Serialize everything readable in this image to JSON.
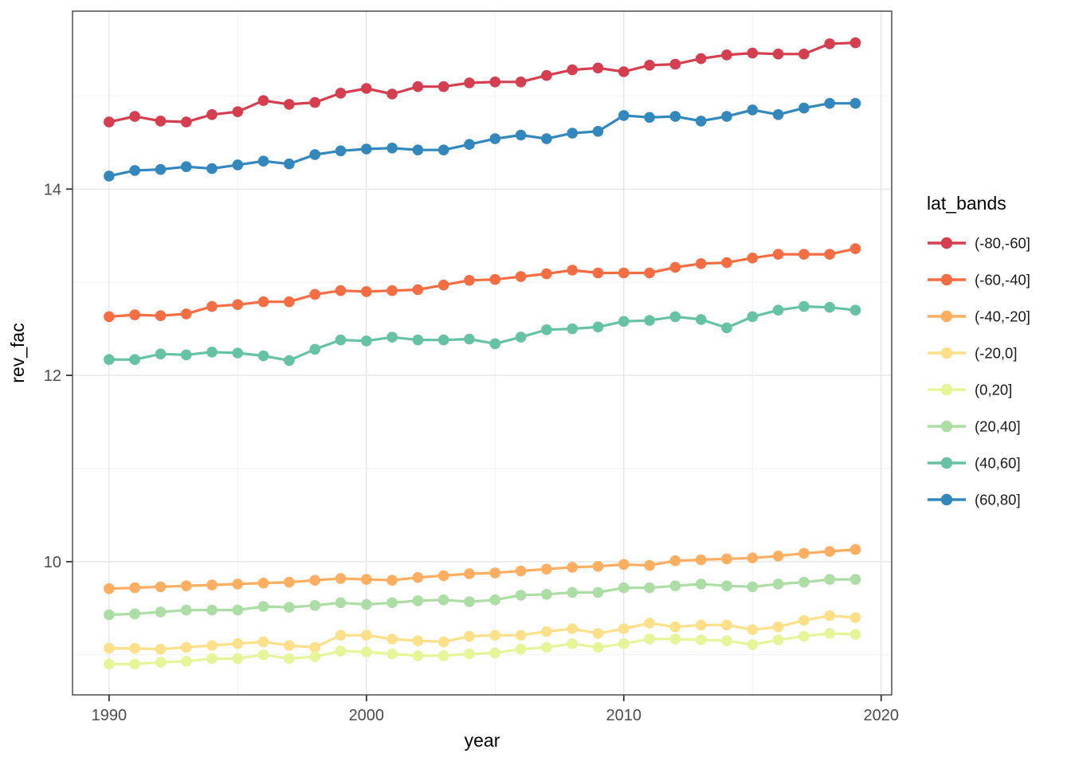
{
  "style": {
    "background": "#ffffff",
    "panel_fill": "#ffffff",
    "panel_border": "#333333",
    "grid_major": "#e6e6e6",
    "grid_minor": "#f2f2f2",
    "tick_color": "#333333",
    "tick_label_color": "#4d4d4d",
    "axis_title_color": "#000000",
    "legend_text_color": "#1a1a1a"
  },
  "chart_data": {
    "type": "line",
    "title": "",
    "xlabel": "year",
    "ylabel": "rev_fac",
    "legend_title": "lat_bands",
    "legend_position": "right",
    "grid": true,
    "xlim": [
      1988.58,
      2020.41
    ],
    "ylim": [
      8.57,
      15.91
    ],
    "x_major_ticks": [
      1990,
      2000,
      2010,
      2020
    ],
    "x_minor_ticks": [
      1995,
      2005,
      2015
    ],
    "y_major_ticks": [
      10,
      12,
      14
    ],
    "y_minor_ticks": [
      9,
      11,
      13,
      15
    ],
    "x": [
      1990,
      1991,
      1992,
      1993,
      1994,
      1995,
      1996,
      1997,
      1998,
      1999,
      2000,
      2001,
      2002,
      2003,
      2004,
      2005,
      2006,
      2007,
      2008,
      2009,
      2010,
      2011,
      2012,
      2013,
      2014,
      2015,
      2016,
      2017,
      2018,
      2019
    ],
    "series": [
      {
        "name": "(-80,-60]",
        "color": "#d53e4f",
        "values": [
          14.72,
          14.78,
          14.73,
          14.72,
          14.8,
          14.83,
          14.95,
          14.91,
          14.93,
          15.03,
          15.08,
          15.02,
          15.1,
          15.1,
          15.14,
          15.15,
          15.15,
          15.22,
          15.28,
          15.3,
          15.26,
          15.33,
          15.34,
          15.4,
          15.44,
          15.46,
          15.45,
          15.45,
          15.56,
          15.57
        ]
      },
      {
        "name": "(-60,-40]",
        "color": "#f46d43",
        "values": [
          12.63,
          12.65,
          12.64,
          12.66,
          12.74,
          12.76,
          12.79,
          12.79,
          12.87,
          12.91,
          12.9,
          12.91,
          12.92,
          12.97,
          13.02,
          13.03,
          13.06,
          13.09,
          13.13,
          13.1,
          13.1,
          13.1,
          13.16,
          13.2,
          13.21,
          13.26,
          13.3,
          13.3,
          13.3,
          13.36
        ]
      },
      {
        "name": "(-40,-20]",
        "color": "#fdae61",
        "values": [
          9.71,
          9.72,
          9.73,
          9.74,
          9.75,
          9.76,
          9.77,
          9.78,
          9.8,
          9.82,
          9.81,
          9.8,
          9.83,
          9.85,
          9.87,
          9.88,
          9.9,
          9.92,
          9.94,
          9.95,
          9.97,
          9.96,
          10.01,
          10.02,
          10.03,
          10.04,
          10.06,
          10.09,
          10.11,
          10.13
        ]
      },
      {
        "name": "(-20,0]",
        "color": "#fee08b",
        "values": [
          9.07,
          9.07,
          9.06,
          9.08,
          9.1,
          9.12,
          9.14,
          9.1,
          9.08,
          9.21,
          9.21,
          9.17,
          9.15,
          9.14,
          9.2,
          9.21,
          9.21,
          9.25,
          9.28,
          9.23,
          9.28,
          9.34,
          9.3,
          9.32,
          9.32,
          9.27,
          9.3,
          9.37,
          9.42,
          9.4
        ]
      },
      {
        "name": "(0,20]",
        "color": "#e6f598",
        "values": [
          8.9,
          8.9,
          8.92,
          8.93,
          8.96,
          8.96,
          9.0,
          8.96,
          8.98,
          9.04,
          9.03,
          9.01,
          8.99,
          8.99,
          9.01,
          9.02,
          9.06,
          9.08,
          9.12,
          9.08,
          9.12,
          9.17,
          9.17,
          9.16,
          9.15,
          9.11,
          9.16,
          9.2,
          9.23,
          9.22
        ]
      },
      {
        "name": "(20,40]",
        "color": "#abdda4",
        "values": [
          9.43,
          9.44,
          9.46,
          9.48,
          9.48,
          9.48,
          9.52,
          9.51,
          9.53,
          9.56,
          9.54,
          9.56,
          9.58,
          9.59,
          9.57,
          9.59,
          9.64,
          9.65,
          9.67,
          9.67,
          9.72,
          9.72,
          9.74,
          9.76,
          9.74,
          9.73,
          9.76,
          9.78,
          9.81,
          9.81
        ]
      },
      {
        "name": "(40,60]",
        "color": "#66c2a5",
        "values": [
          12.17,
          12.17,
          12.23,
          12.22,
          12.25,
          12.24,
          12.21,
          12.16,
          12.28,
          12.38,
          12.37,
          12.41,
          12.38,
          12.38,
          12.39,
          12.34,
          12.41,
          12.49,
          12.5,
          12.52,
          12.58,
          12.59,
          12.63,
          12.6,
          12.51,
          12.63,
          12.7,
          12.74,
          12.73,
          12.7
        ]
      },
      {
        "name": "(60,80]",
        "color": "#3288bd",
        "values": [
          14.14,
          14.2,
          14.21,
          14.24,
          14.22,
          14.26,
          14.3,
          14.27,
          14.37,
          14.41,
          14.43,
          14.44,
          14.42,
          14.42,
          14.48,
          14.54,
          14.58,
          14.54,
          14.6,
          14.62,
          14.79,
          14.77,
          14.78,
          14.73,
          14.78,
          14.85,
          14.8,
          14.87,
          14.92,
          14.92
        ]
      }
    ]
  }
}
